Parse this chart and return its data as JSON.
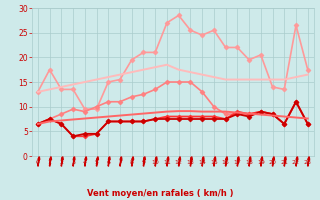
{
  "x": [
    0,
    1,
    2,
    3,
    4,
    5,
    6,
    7,
    8,
    9,
    10,
    11,
    12,
    13,
    14,
    15,
    16,
    17,
    18,
    19,
    20,
    21,
    22,
    23
  ],
  "series": [
    {
      "name": "rafales_high",
      "color": "#ff9999",
      "lw": 1.2,
      "marker": "D",
      "markersize": 2.5,
      "values": [
        13,
        17.5,
        13.5,
        13.5,
        9.5,
        9.5,
        15,
        15.5,
        19.5,
        21,
        21,
        27,
        28.5,
        25.5,
        24.5,
        25.5,
        22,
        22,
        19.5,
        20.5,
        14,
        13.5,
        26.5,
        17.5
      ]
    },
    {
      "name": "moyen_high",
      "color": "#ff8080",
      "lw": 1.2,
      "marker": "D",
      "markersize": 2.5,
      "values": [
        6.5,
        7.5,
        8.5,
        9.5,
        9,
        10,
        11,
        11,
        12,
        12.5,
        13.5,
        15,
        15,
        15,
        13,
        10,
        8.5,
        8.5,
        8.5,
        9,
        8.5,
        6.5,
        11,
        6.5
      ]
    },
    {
      "name": "moyen_mid",
      "color": "#ff3333",
      "lw": 1.3,
      "marker": "D",
      "markersize": 2.5,
      "values": [
        6.5,
        7.5,
        6.5,
        4,
        4,
        4.5,
        7,
        7,
        7,
        7,
        7.5,
        8,
        8,
        8,
        8,
        8,
        7.5,
        9,
        8.5,
        9,
        8.5,
        6.5,
        11,
        6.5
      ]
    },
    {
      "name": "moyen_low",
      "color": "#cc0000",
      "lw": 1.3,
      "marker": "D",
      "markersize": 2.5,
      "values": [
        6.5,
        7.5,
        6.5,
        4,
        4.5,
        4.5,
        7,
        7,
        7,
        7,
        7.5,
        7.5,
        7.5,
        7.5,
        7.5,
        7.5,
        7.5,
        8.5,
        8,
        9,
        8.5,
        6.5,
        11,
        6.5
      ]
    },
    {
      "name": "trend_upper",
      "color": "#ffbbbb",
      "lw": 1.4,
      "marker": null,
      "markersize": 0,
      "values": [
        13,
        13.5,
        14,
        14.5,
        15,
        15.5,
        16,
        16.5,
        17,
        17.5,
        18,
        18.5,
        17.5,
        17.0,
        16.5,
        16.0,
        15.5,
        15.5,
        15.5,
        15.5,
        15.5,
        15.5,
        16,
        16.5
      ]
    },
    {
      "name": "trend_lower",
      "color": "#ff6666",
      "lw": 1.4,
      "marker": null,
      "markersize": 0,
      "values": [
        6.5,
        7.0,
        7.2,
        7.4,
        7.6,
        7.8,
        8.0,
        8.2,
        8.4,
        8.6,
        8.8,
        9.0,
        9.1,
        9.1,
        9.0,
        9.0,
        9.0,
        8.8,
        8.6,
        8.4,
        8.2,
        8.0,
        7.8,
        7.6
      ]
    }
  ],
  "xlabel": "Vent moyen/en rafales ( km/h )",
  "xlim": [
    -0.5,
    23.5
  ],
  "ylim": [
    0,
    30
  ],
  "yticks": [
    0,
    5,
    10,
    15,
    20,
    25,
    30
  ],
  "xticks": [
    0,
    1,
    2,
    3,
    4,
    5,
    6,
    7,
    8,
    9,
    10,
    11,
    12,
    13,
    14,
    15,
    16,
    17,
    18,
    19,
    20,
    21,
    22,
    23
  ],
  "bg_color": "#ceeaea",
  "grid_color": "#aacccc",
  "xlabel_color": "#cc0000",
  "tick_color": "#cc0000",
  "arrow_color": "#cc0000",
  "figsize": [
    3.2,
    2.0
  ],
  "dpi": 100
}
